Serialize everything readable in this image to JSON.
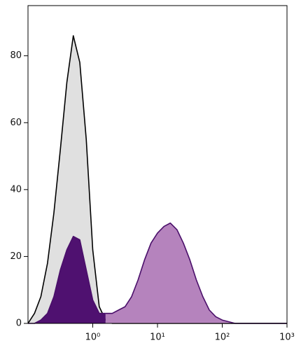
{
  "chart_data": {
    "type": "area",
    "x": [
      0.1,
      0.126,
      0.158,
      0.2,
      0.251,
      0.316,
      0.398,
      0.501,
      0.631,
      0.794,
      1,
      1.26,
      1.58,
      2,
      2.51,
      3.16,
      3.98,
      5.01,
      6.31,
      7.94,
      10,
      12.6,
      15.8,
      20,
      25.1,
      31.6,
      39.8,
      50.1,
      63.1,
      79.4,
      100,
      126,
      158,
      200,
      251,
      316,
      398,
      501,
      631,
      794,
      1000
    ],
    "series": [
      {
        "color": "#000000",
        "fill": "#e0e0e0",
        "values": [
          0,
          3,
          8,
          18,
          33,
          52,
          72,
          86,
          78,
          55,
          22,
          5,
          1,
          0,
          0,
          0,
          0,
          0,
          0,
          0,
          0,
          0,
          0,
          0,
          0,
          0,
          0,
          0,
          0,
          0,
          0,
          0,
          0,
          0,
          0,
          0,
          0,
          0,
          0,
          0,
          0
        ]
      },
      {
        "color": "#4a0f6a",
        "fill": "#4f1170",
        "values": [
          0,
          0,
          1,
          3,
          8,
          16,
          22,
          26,
          25,
          16,
          7,
          3,
          3,
          null,
          null,
          null,
          null,
          null,
          null,
          null,
          null,
          null,
          null,
          null,
          null,
          null,
          null,
          null,
          null,
          null,
          null,
          null,
          null,
          null,
          null,
          null,
          null,
          null,
          null,
          null,
          null
        ]
      },
      {
        "color": "#4a0f6a",
        "fill": "#b583bd",
        "values": [
          null,
          null,
          null,
          null,
          null,
          null,
          null,
          null,
          null,
          null,
          null,
          null,
          3,
          3,
          4,
          5,
          8,
          13,
          19,
          24,
          27,
          29,
          30,
          28,
          24,
          19,
          13,
          8,
          4,
          2,
          1,
          0.5,
          0,
          0,
          0,
          0,
          0,
          0,
          0,
          0,
          0
        ]
      }
    ],
    "xlog": true,
    "xlim": [
      0.1,
      1000
    ],
    "xticks": [
      {
        "value": 1,
        "label": "10⁰"
      },
      {
        "value": 10,
        "label": "10¹"
      },
      {
        "value": 100,
        "label": "10²"
      },
      {
        "value": 1000,
        "label": "10³"
      }
    ],
    "ylim": [
      0,
      95
    ],
    "yticks": [
      0,
      20,
      40,
      60,
      80
    ]
  }
}
